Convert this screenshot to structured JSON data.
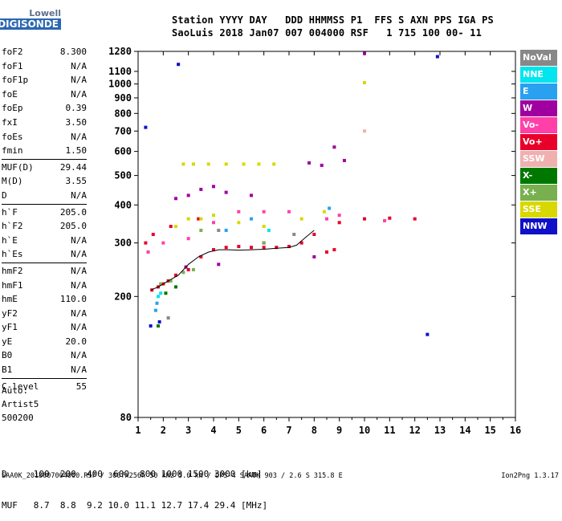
{
  "logo": {
    "line1": "Lowell",
    "line2": "DIGISONDE"
  },
  "header": {
    "keys": "Station YYYY DAY   DDD HHMMSS P1  FFS S AXN PPS IGA PS",
    "vals": "SaoLuis 2018 Jan07 007 004000 RSF   1 715 100 00- 11"
  },
  "params": {
    "groups": [
      [
        [
          "foF2",
          "8.300"
        ],
        [
          "foF1",
          "N/A"
        ],
        [
          "foF1p",
          "N/A"
        ],
        [
          "foE",
          "N/A"
        ],
        [
          "foEp",
          "0.39"
        ],
        [
          "fxI",
          "3.50"
        ],
        [
          "foEs",
          "N/A"
        ],
        [
          "fmin",
          "1.50"
        ]
      ],
      [
        [
          "MUF(D)",
          "29.44"
        ],
        [
          "M(D)",
          "3.55"
        ],
        [
          "D",
          "N/A"
        ]
      ],
      [
        [
          "h`F",
          "205.0"
        ],
        [
          "h`F2",
          "205.0"
        ],
        [
          "h`E",
          "N/A"
        ],
        [
          "h`Es",
          "N/A"
        ]
      ],
      [
        [
          "hmF2",
          "N/A"
        ],
        [
          "hmF1",
          "N/A"
        ],
        [
          "hmE",
          "110.0"
        ],
        [
          "yF2",
          "N/A"
        ],
        [
          "yF1",
          "N/A"
        ],
        [
          "yE",
          "20.0"
        ],
        [
          "B0",
          "N/A"
        ],
        [
          "B1",
          "N/A"
        ]
      ],
      [
        [
          "C-level",
          "55"
        ]
      ]
    ]
  },
  "auto": {
    "line1": "Auto:",
    "line2": "Artist5",
    "line3": "500200"
  },
  "legend": [
    {
      "label": "NoVal",
      "color": "#888888"
    },
    {
      "label": "NNE",
      "color": "#00e5ee"
    },
    {
      "label": "E",
      "color": "#2aa0f0"
    },
    {
      "label": "W",
      "color": "#a000a0"
    },
    {
      "label": "Vo-",
      "color": "#ff40a8"
    },
    {
      "label": "Vo+",
      "color": "#e8002a"
    },
    {
      "label": "SSW",
      "color": "#f0b0b0"
    },
    {
      "label": "X-",
      "color": "#007800"
    },
    {
      "label": "X+",
      "color": "#78b050"
    },
    {
      "label": "SSE",
      "color": "#d8d800"
    },
    {
      "label": "NNW",
      "color": "#1010c8"
    }
  ],
  "dmuf": {
    "d_row": "D     100  200  400  600  800 1000 1500 3000 [km]",
    "muf_row": "MUF   8.7  8.8  9.2 10.0 11.1 12.7 17.4 29.4 [MHz]"
  },
  "footer": {
    "text": "SAA0K_2018007004000.RSF / 300fx256h 50 kHz 5.0 km / DPS-4 SAA0K 903 / 2.6 S 315.8 E",
    "version": "Ion2Png 1.3.17"
  },
  "chart_data": {
    "type": "scatter",
    "x_ticks": [
      1,
      2,
      3,
      4,
      5,
      6,
      7,
      8,
      9,
      10,
      11,
      12,
      13,
      14,
      15,
      16
    ],
    "y_ticks": [
      80,
      200,
      300,
      400,
      500,
      600,
      700,
      800,
      900,
      1000,
      1100,
      1280
    ],
    "xlim": [
      1,
      16
    ],
    "ylim": [
      80,
      1280
    ],
    "y_scale": "log",
    "grid": false,
    "series": [
      {
        "name": "Vo+",
        "values": [
          [
            1.55,
            210
          ],
          [
            1.8,
            215
          ],
          [
            2.0,
            220
          ],
          [
            2.2,
            225
          ],
          [
            2.5,
            235
          ],
          [
            3.0,
            245
          ],
          [
            3.5,
            270
          ],
          [
            4.0,
            285
          ],
          [
            4.5,
            290
          ],
          [
            5.0,
            292
          ],
          [
            5.5,
            290
          ],
          [
            6.0,
            290
          ],
          [
            6.5,
            290
          ],
          [
            7.0,
            292
          ],
          [
            7.5,
            300
          ],
          [
            8.0,
            320
          ],
          [
            9.0,
            350
          ],
          [
            10.0,
            360
          ],
          [
            11.0,
            362
          ],
          [
            12.0,
            360
          ],
          [
            1.3,
            300
          ],
          [
            1.6,
            320
          ],
          [
            2.3,
            340
          ],
          [
            3.4,
            360
          ],
          [
            8.5,
            280
          ],
          [
            8.8,
            285
          ]
        ]
      },
      {
        "name": "SSE",
        "values": [
          [
            2.8,
            545
          ],
          [
            3.2,
            545
          ],
          [
            3.8,
            545
          ],
          [
            4.5,
            545
          ],
          [
            5.2,
            545
          ],
          [
            5.8,
            545
          ],
          [
            6.4,
            545
          ],
          [
            2.5,
            340
          ],
          [
            3.0,
            360
          ],
          [
            3.5,
            360
          ],
          [
            4.0,
            370
          ],
          [
            5.0,
            350
          ],
          [
            6.0,
            340
          ],
          [
            7.5,
            360
          ],
          [
            8.4,
            380
          ],
          [
            10.0,
            1010
          ]
        ]
      },
      {
        "name": "W",
        "values": [
          [
            2.5,
            420
          ],
          [
            3.0,
            430
          ],
          [
            3.5,
            450
          ],
          [
            4.0,
            460
          ],
          [
            4.5,
            440
          ],
          [
            5.5,
            430
          ],
          [
            7.8,
            550
          ],
          [
            8.3,
            540
          ],
          [
            8.8,
            620
          ],
          [
            9.2,
            560
          ],
          [
            10.0,
            1260
          ],
          [
            2.9,
            250
          ],
          [
            4.2,
            255
          ],
          [
            6.0,
            300
          ],
          [
            8.0,
            270
          ]
        ]
      },
      {
        "name": "X+",
        "values": [
          [
            1.9,
            220
          ],
          [
            2.3,
            225
          ],
          [
            2.8,
            240
          ],
          [
            3.2,
            245
          ],
          [
            6.0,
            300
          ],
          [
            3.5,
            330
          ]
        ]
      },
      {
        "name": "Vo-",
        "values": [
          [
            1.4,
            280
          ],
          [
            2.0,
            300
          ],
          [
            3.0,
            310
          ],
          [
            4.0,
            350
          ],
          [
            5.0,
            380
          ],
          [
            6.0,
            380
          ],
          [
            7.0,
            380
          ],
          [
            8.5,
            360
          ],
          [
            9.0,
            370
          ],
          [
            10.8,
            355
          ]
        ]
      },
      {
        "name": "E",
        "values": [
          [
            1.7,
            180
          ],
          [
            1.75,
            190
          ],
          [
            4.5,
            330
          ],
          [
            5.5,
            360
          ],
          [
            8.6,
            390
          ]
        ]
      },
      {
        "name": "NNE",
        "values": [
          [
            1.8,
            200
          ],
          [
            1.9,
            205
          ],
          [
            6.2,
            330
          ]
        ]
      },
      {
        "name": "NNW",
        "values": [
          [
            1.3,
            720
          ],
          [
            1.5,
            160
          ],
          [
            1.85,
            165
          ],
          [
            2.6,
            1160
          ],
          [
            12.5,
            150
          ],
          [
            12.9,
            1230
          ]
        ]
      },
      {
        "name": "NoVal",
        "values": [
          [
            2.2,
            170
          ],
          [
            4.2,
            330
          ],
          [
            7.2,
            320
          ]
        ]
      },
      {
        "name": "X-",
        "values": [
          [
            1.8,
            160
          ],
          [
            2.1,
            205
          ],
          [
            2.5,
            215
          ]
        ]
      },
      {
        "name": "SSW",
        "values": [
          [
            10.0,
            700
          ]
        ]
      }
    ],
    "trace_hprime": {
      "x": [
        1.5,
        1.8,
        2.2,
        2.6,
        3.0,
        3.4,
        3.8,
        4.2,
        4.6,
        5.0,
        5.5,
        6.0,
        6.5,
        7.0,
        7.3,
        7.6,
        8.0
      ],
      "y": [
        210,
        215,
        225,
        235,
        255,
        270,
        280,
        285,
        285,
        284,
        285,
        286,
        288,
        290,
        295,
        310,
        330
      ]
    }
  }
}
